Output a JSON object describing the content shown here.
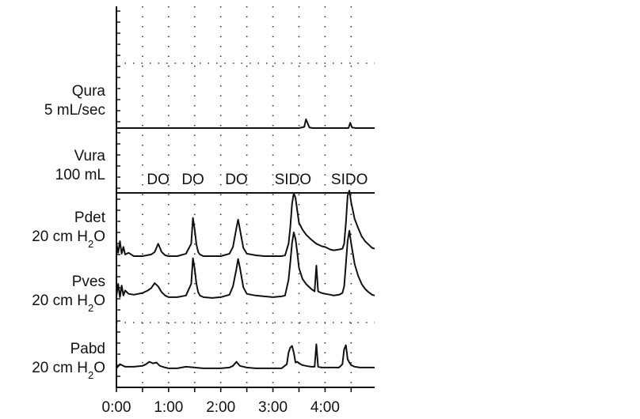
{
  "chart_data": {
    "type": "line",
    "title": "",
    "xlabel": "",
    "x_unit": "min:sec",
    "xlim": [
      "0:00",
      "4:57"
    ],
    "x_ticks": [
      "0:00",
      "1:00",
      "2:00",
      "3:00",
      "4:00"
    ],
    "grid": true,
    "channels": [
      {
        "name": "Qura",
        "scale_label": "5 mL/sec",
        "x": [
          "0:00",
          "3:30",
          "3:36",
          "3:38",
          "3:40",
          "3:42",
          "3:46",
          "4:27",
          "4:29",
          "4:31",
          "4:35",
          "4:57"
        ],
        "values": [
          0,
          0,
          0.2,
          1.5,
          0.8,
          0.1,
          0,
          0,
          0.9,
          0.1,
          0,
          0
        ]
      },
      {
        "name": "Vura",
        "scale_label": "100 mL",
        "x": [
          "0:00",
          "4:57"
        ],
        "values": [
          0,
          0
        ]
      },
      {
        "name": "Pdet",
        "scale_label": "20 cm H2O",
        "subscript": "2",
        "x": [
          "0:00",
          "0:02",
          "0:04",
          "0:06",
          "0:08",
          "0:10",
          "0:14",
          "0:20",
          "0:30",
          "0:40",
          "0:44",
          "0:48",
          "0:52",
          "0:56",
          "1:00",
          "1:10",
          "1:20",
          "1:26",
          "1:28",
          "1:30",
          "1:32",
          "1:34",
          "1:36",
          "1:40",
          "1:50",
          "2:00",
          "2:10",
          "2:14",
          "2:18",
          "2:20",
          "2:22",
          "2:26",
          "2:30",
          "2:40",
          "2:50",
          "3:00",
          "3:10",
          "3:14",
          "3:18",
          "3:20",
          "3:22",
          "3:24",
          "3:26",
          "3:28",
          "3:30",
          "3:34",
          "3:38",
          "3:44",
          "3:50",
          "3:56",
          "4:00",
          "4:06",
          "4:10",
          "4:16",
          "4:20",
          "4:22",
          "4:24",
          "4:26",
          "4:28",
          "4:30",
          "4:34",
          "4:38",
          "4:42",
          "4:46",
          "4:50",
          "4:54",
          "4:57"
        ],
        "values": [
          1.6,
          0.4,
          1.8,
          0.3,
          1.1,
          0.2,
          0.4,
          0,
          0,
          0.2,
          0.5,
          1.5,
          0.5,
          0.1,
          0,
          0,
          0.3,
          1.5,
          4.6,
          3.2,
          1.4,
          0.5,
          0.2,
          0,
          0,
          0,
          0.3,
          1.1,
          3.4,
          4.4,
          3.3,
          1.0,
          0.3,
          0.1,
          0,
          0,
          0,
          0.1,
          1.5,
          3.5,
          6.3,
          7.6,
          7.0,
          5.5,
          4.0,
          3.2,
          2.6,
          2.0,
          1.5,
          1.2,
          1.1,
          0.8,
          0.7,
          0.8,
          0.9,
          1.5,
          4.0,
          7.3,
          7.9,
          6.5,
          4.5,
          3.4,
          2.4,
          1.8,
          1.4,
          1.0,
          0.9
        ]
      },
      {
        "name": "Pves",
        "scale_label": "20 cm H2O",
        "subscript": "2",
        "x": [
          "0:00",
          "0:02",
          "0:04",
          "0:06",
          "0:08",
          "0:10",
          "0:14",
          "0:20",
          "0:30",
          "0:36",
          "0:40",
          "0:44",
          "0:48",
          "0:52",
          "0:56",
          "1:00",
          "1:10",
          "1:20",
          "1:26",
          "1:28",
          "1:30",
          "1:32",
          "1:34",
          "1:36",
          "1:40",
          "1:50",
          "2:00",
          "2:10",
          "2:14",
          "2:18",
          "2:20",
          "2:22",
          "2:26",
          "2:30",
          "2:40",
          "2:50",
          "3:00",
          "3:10",
          "3:14",
          "3:18",
          "3:20",
          "3:22",
          "3:24",
          "3:26",
          "3:28",
          "3:30",
          "3:34",
          "3:38",
          "3:44",
          "3:48",
          "3:50",
          "3:52",
          "3:56",
          "4:00",
          "4:06",
          "4:10",
          "4:16",
          "4:20",
          "4:22",
          "4:24",
          "4:26",
          "4:28",
          "4:30",
          "4:34",
          "4:38",
          "4:42",
          "4:46",
          "4:50",
          "4:54",
          "4:57"
        ],
        "values": [
          0.3,
          1.8,
          0.2,
          1.6,
          0.4,
          1.0,
          0.6,
          0.5,
          0.7,
          1.0,
          1.3,
          1.9,
          1.5,
          0.8,
          0.4,
          0.2,
          0.2,
          0.4,
          1.8,
          4.9,
          3.6,
          1.8,
          0.8,
          0.4,
          0.2,
          0.1,
          0.2,
          0.5,
          1.5,
          3.6,
          4.8,
          3.8,
          1.4,
          0.6,
          0.4,
          0.3,
          0.2,
          0.3,
          0.4,
          2.3,
          4.4,
          6.7,
          8.0,
          7.2,
          5.6,
          3.7,
          2.4,
          1.8,
          1.2,
          0.9,
          4.0,
          0.9,
          0.7,
          0.6,
          0.5,
          0.4,
          0.5,
          0.7,
          1.5,
          4.2,
          7.0,
          8.2,
          6.7,
          4.2,
          2.8,
          1.8,
          1.2,
          0.8,
          0.5,
          0.4
        ]
      },
      {
        "name": "Pabd",
        "scale_label": "20 cm H2O",
        "subscript": "2",
        "x": [
          "0:00",
          "0:04",
          "0:10",
          "0:20",
          "0:30",
          "0:34",
          "0:38",
          "0:42",
          "0:46",
          "0:50",
          "0:56",
          "1:00",
          "1:10",
          "1:20",
          "1:30",
          "1:40",
          "1:50",
          "2:00",
          "2:10",
          "2:14",
          "2:18",
          "2:22",
          "2:30",
          "2:40",
          "2:50",
          "3:00",
          "3:10",
          "3:16",
          "3:18",
          "3:20",
          "3:22",
          "3:24",
          "3:26",
          "3:28",
          "3:30",
          "3:34",
          "3:38",
          "3:44",
          "3:48",
          "3:50",
          "3:52",
          "3:56",
          "4:00",
          "4:10",
          "4:16",
          "4:20",
          "4:22",
          "4:24",
          "4:26",
          "4:28",
          "4:30",
          "4:34",
          "4:40",
          "4:50",
          "4:57"
        ],
        "values": [
          0.1,
          0.6,
          0.3,
          0.3,
          0.4,
          0.6,
          0.9,
          0.7,
          0.8,
          0.4,
          0.2,
          0.1,
          0.1,
          0.3,
          0.2,
          0.1,
          0.1,
          0.1,
          0.2,
          0.4,
          0.9,
          0.4,
          0.2,
          0.1,
          0.1,
          0.1,
          0.1,
          0.6,
          2.0,
          2.6,
          2.8,
          2.0,
          0.8,
          0.9,
          0.7,
          0.5,
          0.4,
          0.3,
          0.3,
          3.0,
          0.3,
          0.2,
          0.2,
          0.2,
          0.2,
          0.6,
          2.4,
          2.9,
          1.2,
          0.8,
          0.5,
          0.3,
          0.2,
          0.2,
          0.2
        ]
      }
    ],
    "annotations": [
      {
        "text": "DO",
        "x": "0:48"
      },
      {
        "text": "DO",
        "x": "1:28"
      },
      {
        "text": "DO",
        "x": "2:18"
      },
      {
        "text": "SIDO",
        "x": "3:23"
      },
      {
        "text": "SIDO",
        "x": "4:28"
      }
    ]
  }
}
